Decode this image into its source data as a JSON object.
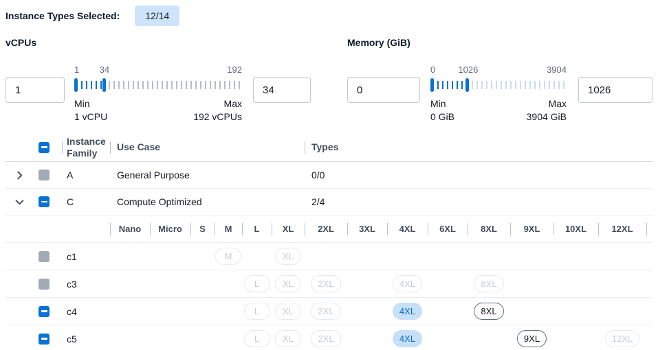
{
  "colors": {
    "accent": "#0972d3",
    "badge_bg": "#cde4fa",
    "chip_selected_bg": "#c6e0f9",
    "chip_selected_text": "#0b67cc",
    "tick_unselected_vcpu": "#b7bdc5",
    "tick_unselected_memory": "#ccdbeb",
    "checkbox_gray": "#a2aab4"
  },
  "topbar": {
    "label": "Instance Types Selected:",
    "badge": "12/14"
  },
  "filters": {
    "vcpus": {
      "label": "vCPUs",
      "min_input": "1",
      "max_input": "34",
      "scale_start": "1",
      "scale_current": "34",
      "scale_end": "192",
      "selected_pct": 17.7,
      "min_label": "Min",
      "min_caption": "1 vCPU",
      "max_label": "Max",
      "max_caption": "192 vCPUs"
    },
    "memory": {
      "label": "Memory (GiB)",
      "min_input": "0",
      "max_input": "1026",
      "scale_start": "0",
      "scale_current": "1026",
      "scale_end": "3904",
      "selected_pct": 27,
      "min_label": "Min",
      "min_caption": "0 GiB",
      "max_label": "Max",
      "max_caption": "3904 GiB"
    }
  },
  "table": {
    "columns": {
      "family": "Instance Family",
      "use_case": "Use Case",
      "types": "Types"
    },
    "size_columns": [
      "Nano",
      "Micro",
      "S",
      "M",
      "L",
      "XL",
      "2XL",
      "3XL",
      "4XL",
      "6XL",
      "8XL",
      "9XL",
      "10XL",
      "12XL"
    ],
    "families": [
      {
        "name": "A",
        "use_case": "General Purpose",
        "types": "0/0",
        "expanded": false,
        "checkbox": "gray"
      },
      {
        "name": "C",
        "use_case": "Compute Optimized",
        "types": "2/4",
        "expanded": true,
        "checkbox": "indeterminate"
      }
    ],
    "instance_rows": [
      {
        "name": "c1",
        "checkbox": "gray",
        "chips": [
          {
            "col": 3,
            "label": "M",
            "state": "disabled"
          },
          {
            "col": 5,
            "label": "XL",
            "state": "disabled"
          }
        ]
      },
      {
        "name": "c3",
        "checkbox": "gray",
        "chips": [
          {
            "col": 4,
            "label": "L",
            "state": "disabled"
          },
          {
            "col": 5,
            "label": "XL",
            "state": "disabled"
          },
          {
            "col": 6,
            "label": "2XL",
            "state": "disabled"
          },
          {
            "col": 8,
            "label": "4XL",
            "state": "disabled"
          },
          {
            "col": 10,
            "label": "8XL",
            "state": "disabled"
          }
        ]
      },
      {
        "name": "c4",
        "checkbox": "indeterminate",
        "chips": [
          {
            "col": 4,
            "label": "L",
            "state": "disabled"
          },
          {
            "col": 5,
            "label": "XL",
            "state": "disabled"
          },
          {
            "col": 6,
            "label": "2XL",
            "state": "disabled"
          },
          {
            "col": 8,
            "label": "4XL",
            "state": "selected"
          },
          {
            "col": 10,
            "label": "8XL",
            "state": "enabled"
          }
        ]
      },
      {
        "name": "c5",
        "checkbox": "indeterminate",
        "chips": [
          {
            "col": 4,
            "label": "L",
            "state": "disabled"
          },
          {
            "col": 5,
            "label": "XL",
            "state": "disabled"
          },
          {
            "col": 6,
            "label": "2XL",
            "state": "disabled"
          },
          {
            "col": 8,
            "label": "4XL",
            "state": "selected"
          },
          {
            "col": 11,
            "label": "9XL",
            "state": "enabled"
          },
          {
            "col": 13,
            "label": "12XL",
            "state": "disabled"
          }
        ]
      }
    ]
  }
}
